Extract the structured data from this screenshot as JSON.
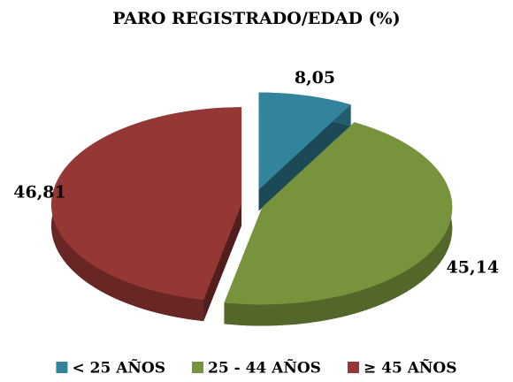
{
  "chart_data": {
    "type": "pie",
    "title": "PARO REGISTRADO/EDAD (%)",
    "categories": [
      "< 25 AÑOS",
      "25 - 44 AÑOS",
      "≥ 45 AÑOS"
    ],
    "values": [
      8.05,
      45.14,
      46.81
    ],
    "value_labels": [
      "8,05",
      "45,14",
      "46,81"
    ],
    "colors": [
      "#31849b",
      "#77933c",
      "#953735"
    ],
    "legend": "bottom"
  }
}
